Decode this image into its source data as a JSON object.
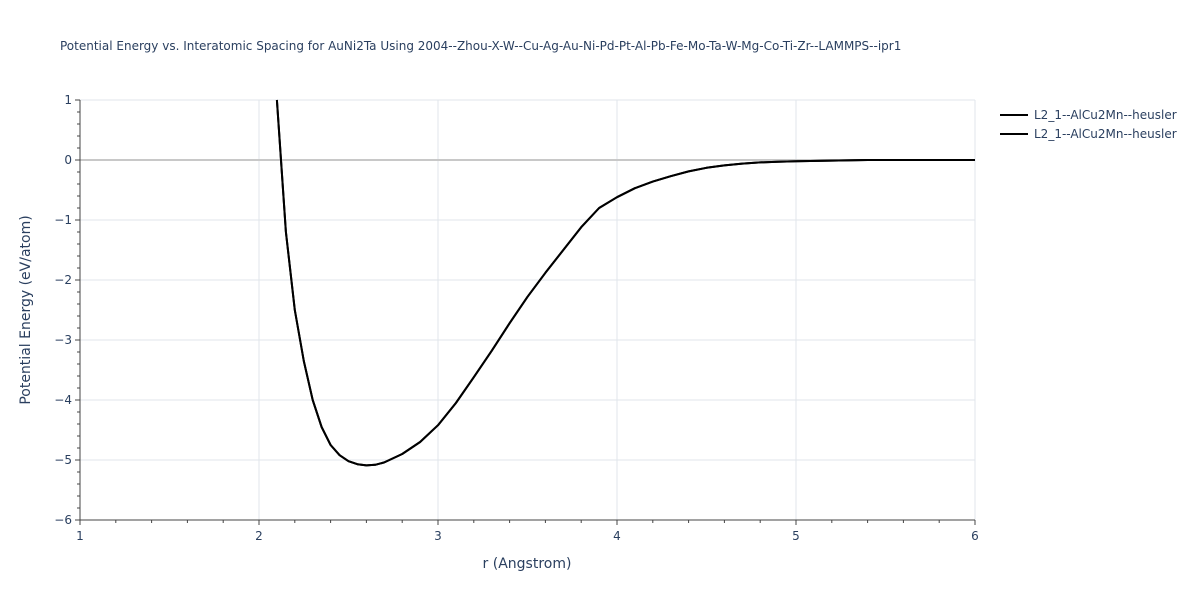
{
  "chart_data": {
    "type": "line",
    "title": "Potential Energy vs. Interatomic Spacing for AuNi2Ta Using 2004--Zhou-X-W--Cu-Ag-Au-Ni-Pd-Pt-Al-Pb-Fe-Mo-Ta-W-Mg-Co-Ti-Zr--LAMMPS--ipr1",
    "xlabel": "r (Angstrom)",
    "ylabel": "Potential Energy (eV/atom)",
    "xlim": [
      1,
      6
    ],
    "ylim": [
      -6,
      1
    ],
    "xticks": [
      1,
      2,
      3,
      4,
      5,
      6
    ],
    "yticks": [
      -6,
      -5,
      -4,
      -3,
      -2,
      -1,
      0,
      1
    ],
    "xtick_labels": [
      "1",
      "2",
      "3",
      "4",
      "5",
      "6"
    ],
    "ytick_labels": [
      "−6",
      "−5",
      "−4",
      "−3",
      "−2",
      "−1",
      "0",
      "1"
    ],
    "grid": true,
    "legend_position": "top-right",
    "series": [
      {
        "name": "L2_1--AlCu2Mn--heusler",
        "color": "#000000",
        "x": [
          2.1,
          2.15,
          2.2,
          2.25,
          2.3,
          2.35,
          2.4,
          2.45,
          2.5,
          2.55,
          2.6,
          2.65,
          2.7,
          2.8,
          2.9,
          3.0,
          3.1,
          3.2,
          3.3,
          3.4,
          3.5,
          3.6,
          3.7,
          3.8,
          3.9,
          4.0,
          4.1,
          4.2,
          4.3,
          4.4,
          4.5,
          4.6,
          4.7,
          4.8,
          4.9,
          5.0,
          5.2,
          5.4,
          5.6,
          5.8,
          6.0
        ],
        "y": [
          1.0,
          -1.2,
          -2.5,
          -3.35,
          -4.0,
          -4.45,
          -4.75,
          -4.92,
          -5.02,
          -5.07,
          -5.09,
          -5.08,
          -5.04,
          -4.9,
          -4.7,
          -4.42,
          -4.05,
          -3.62,
          -3.18,
          -2.72,
          -2.28,
          -1.88,
          -1.5,
          -1.12,
          -0.8,
          -0.62,
          -0.47,
          -0.36,
          -0.27,
          -0.19,
          -0.13,
          -0.09,
          -0.06,
          -0.04,
          -0.03,
          -0.02,
          -0.01,
          0.0,
          0.0,
          0.0,
          0.0
        ]
      },
      {
        "name": "L2_1--AlCu2Mn--heusler",
        "color": "#000000",
        "x": [
          2.1,
          2.15,
          2.2,
          2.25,
          2.3,
          2.35,
          2.4,
          2.45,
          2.5,
          2.55,
          2.6,
          2.65,
          2.7,
          2.8,
          2.9,
          3.0,
          3.1,
          3.2,
          3.3,
          3.4,
          3.5,
          3.6,
          3.7,
          3.8,
          3.9,
          4.0,
          4.1,
          4.2,
          4.3,
          4.4,
          4.5,
          4.6,
          4.7,
          4.8,
          4.9,
          5.0,
          5.2,
          5.4,
          5.6,
          5.8,
          6.0
        ],
        "y": [
          1.0,
          -1.2,
          -2.5,
          -3.35,
          -4.0,
          -4.45,
          -4.75,
          -4.92,
          -5.02,
          -5.07,
          -5.09,
          -5.08,
          -5.04,
          -4.9,
          -4.7,
          -4.42,
          -4.05,
          -3.62,
          -3.18,
          -2.72,
          -2.28,
          -1.88,
          -1.5,
          -1.12,
          -0.8,
          -0.62,
          -0.47,
          -0.36,
          -0.27,
          -0.19,
          -0.13,
          -0.09,
          -0.06,
          -0.04,
          -0.03,
          -0.02,
          -0.01,
          0.0,
          0.0,
          0.0,
          0.0
        ]
      }
    ]
  }
}
